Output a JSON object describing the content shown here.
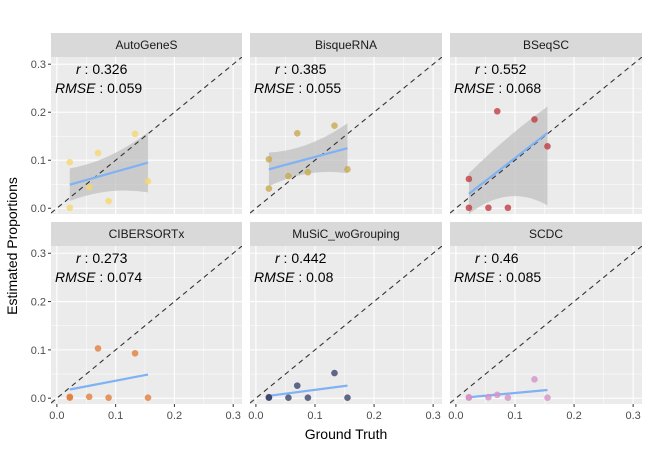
{
  "figure": {
    "xlabel": "Ground Truth",
    "ylabel": "Estimated Proportions"
  },
  "style": {
    "panel_bg": "#ebebeb",
    "strip_bg": "#d9d9d9",
    "grid_major": "#ffffff",
    "fit_line": "#7fb2f5",
    "ribbon": "#bdbdbd",
    "identity_line": "#333333"
  },
  "chart_data": [
    {
      "type": "scatter",
      "title": "AutoGeneS",
      "r": "0.326",
      "rmse": "0.059",
      "point_color": "#f5d66b",
      "x": [
        0.022,
        0.022,
        0.055,
        0.07,
        0.088,
        0.133,
        0.155
      ],
      "y": [
        0.001,
        0.096,
        0.044,
        0.115,
        0.015,
        0.155,
        0.056
      ],
      "fit": {
        "x0": 0.022,
        "y0": 0.049,
        "x1": 0.155,
        "y1": 0.095
      },
      "band": {
        "lo0": 0.015,
        "hi0": 0.083,
        "loMid": 0.046,
        "hiMid": 0.097,
        "lo1": 0.033,
        "hi1": 0.158
      },
      "xlim": [
        -0.01,
        0.315
      ],
      "ylim": [
        -0.012,
        0.315
      ],
      "xticks": [
        "0.0",
        "0.1",
        "0.2",
        "0.3"
      ],
      "yticks": [
        "0.0",
        "0.1",
        "0.2",
        "0.3"
      ]
    },
    {
      "type": "scatter",
      "title": "BisqueRNA",
      "r": "0.385",
      "rmse": "0.055",
      "point_color": "#c8a84c",
      "x": [
        0.022,
        0.022,
        0.055,
        0.07,
        0.088,
        0.133,
        0.155
      ],
      "y": [
        0.041,
        0.102,
        0.067,
        0.156,
        0.075,
        0.172,
        0.081
      ],
      "fit": {
        "x0": 0.022,
        "y0": 0.081,
        "x1": 0.155,
        "y1": 0.125
      },
      "band": {
        "lo0": 0.046,
        "hi0": 0.116,
        "loMid": 0.085,
        "hiMid": 0.12,
        "lo1": 0.073,
        "hi1": 0.177
      },
      "xlim": [
        -0.01,
        0.315
      ],
      "ylim": [
        -0.012,
        0.315
      ],
      "xticks": [
        "0.0",
        "0.1",
        "0.2",
        "0.3"
      ],
      "yticks": [
        "0.0",
        "0.1",
        "0.2",
        "0.3"
      ]
    },
    {
      "type": "scatter",
      "title": "BSeqSC",
      "r": "0.552",
      "rmse": "0.068",
      "point_color": "#c0393c",
      "x": [
        0.022,
        0.022,
        0.055,
        0.07,
        0.088,
        0.133,
        0.155
      ],
      "y": [
        0.001,
        0.061,
        0.001,
        0.202,
        0.001,
        0.185,
        0.129
      ],
      "fit": {
        "x0": 0.022,
        "y0": 0.03,
        "x1": 0.155,
        "y1": 0.157
      },
      "band": {
        "lo0": -0.012,
        "hi0": 0.073,
        "loMid": 0.052,
        "hiMid": 0.153,
        "lo1": 0.006,
        "hi1": 0.212
      },
      "xlim": [
        -0.01,
        0.315
      ],
      "ylim": [
        -0.012,
        0.315
      ],
      "xticks": [
        "0.0",
        "0.1",
        "0.2",
        "0.3"
      ],
      "yticks": [
        "0.0",
        "0.1",
        "0.2",
        "0.3"
      ]
    },
    {
      "type": "scatter",
      "title": "CIBERSORTx",
      "r": "0.273",
      "rmse": "0.074",
      "point_color": "#e07b39",
      "x": [
        0.022,
        0.022,
        0.055,
        0.07,
        0.088,
        0.133,
        0.155
      ],
      "y": [
        0.001,
        0.003,
        0.003,
        0.103,
        0.001,
        0.093,
        0.001
      ],
      "fit": {
        "x0": 0.022,
        "y0": 0.018,
        "x1": 0.155,
        "y1": 0.049
      }
    },
    {
      "type": "scatter",
      "title": "MuSiC_woGrouping",
      "r": "0.442",
      "rmse": "0.08",
      "point_color": "#36416b",
      "x": [
        0.022,
        0.022,
        0.055,
        0.07,
        0.088,
        0.133,
        0.155
      ],
      "y": [
        0.001,
        0.002,
        0.001,
        0.026,
        0.001,
        0.052,
        0.001
      ],
      "fit": {
        "x0": 0.022,
        "y0": 0.005,
        "x1": 0.155,
        "y1": 0.026
      }
    },
    {
      "type": "scatter",
      "title": "SCDC",
      "r": "0.46",
      "rmse": "0.085",
      "point_color": "#d68fc7",
      "x": [
        0.022,
        0.022,
        0.055,
        0.07,
        0.088,
        0.133,
        0.155
      ],
      "y": [
        0.001,
        0.002,
        0.002,
        0.007,
        0.001,
        0.039,
        0.001
      ],
      "fit": {
        "x0": 0.022,
        "y0": 0.002,
        "x1": 0.155,
        "y1": 0.017
      }
    }
  ]
}
